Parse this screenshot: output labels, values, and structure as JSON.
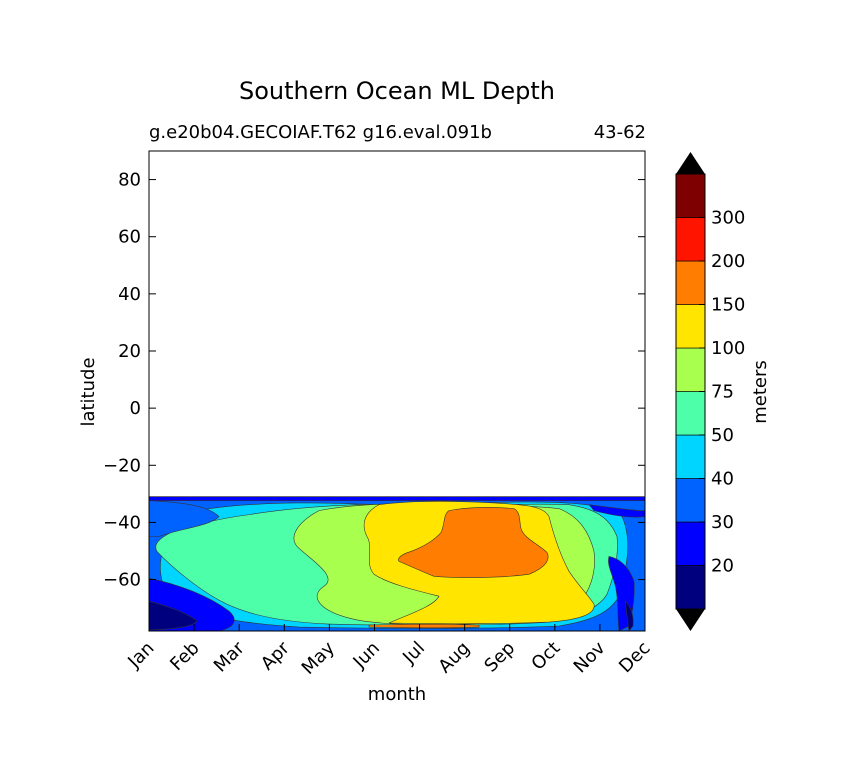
{
  "chart_data": {
    "type": "contour",
    "title": "Southern Ocean ML Depth",
    "subtitle_left": "g.e20b04.GECOIAF.T62 g16.eval.091b",
    "subtitle_right": "43-62",
    "xlabel": "month",
    "ylabel": "latitude",
    "x_categories": [
      "Jan",
      "Feb",
      "Mar",
      "Apr",
      "May",
      "Jun",
      "Jul",
      "Aug",
      "Sep",
      "Oct",
      "Nov",
      "Dec"
    ],
    "y_ticks": [
      80,
      60,
      40,
      20,
      0,
      -20,
      -40,
      -60
    ],
    "y_tick_labels": [
      "80",
      "60",
      "40",
      "20",
      "0",
      "−20",
      "−40",
      "−60"
    ],
    "ylim": [
      -78,
      90
    ],
    "data_lat_range": [
      -78,
      -31
    ],
    "colorbar": {
      "label": "meters",
      "extend": "both",
      "levels": [
        20,
        30,
        40,
        50,
        75,
        100,
        150,
        200,
        300
      ],
      "level_labels": [
        "20",
        "30",
        "40",
        "50",
        "75",
        "100",
        "150",
        "200",
        "300"
      ],
      "colors": [
        "#00007f",
        "#0000ff",
        "#0063ff",
        "#00d5ff",
        "#4effa9",
        "#a9ff4e",
        "#ffe500",
        "#ff7d00",
        "#ff1400",
        "#7f0000"
      ],
      "under_color": "#000000",
      "over_color": "#000000"
    },
    "bands": [
      {
        "value_range": "<20",
        "color": "#00007f"
      },
      {
        "value_range": "20-30",
        "color": "#0000ff"
      },
      {
        "value_range": "30-40",
        "color": "#0063ff"
      },
      {
        "value_range": "40-50",
        "color": "#00d5ff"
      },
      {
        "value_range": "50-75",
        "color": "#4effa9"
      },
      {
        "value_range": "75-100",
        "color": "#a9ff4e"
      },
      {
        "value_range": "100-150",
        "color": "#ffe500"
      },
      {
        "value_range": "150-200",
        "color": "#ff7d00"
      }
    ]
  }
}
